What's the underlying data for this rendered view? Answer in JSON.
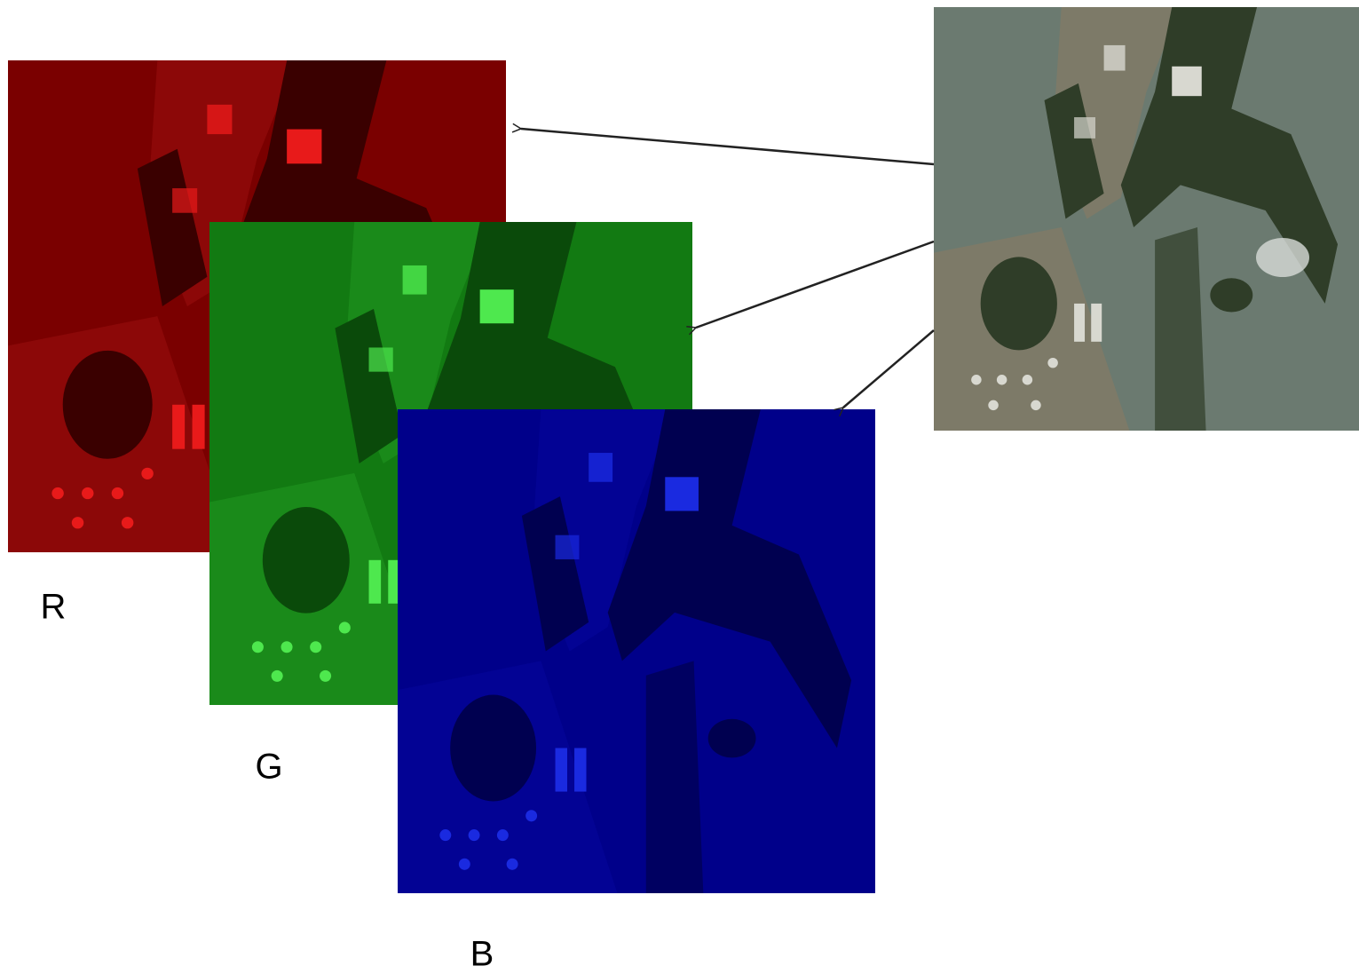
{
  "channels": [
    {
      "label": "R"
    },
    {
      "label": "G"
    },
    {
      "label": "B"
    }
  ]
}
